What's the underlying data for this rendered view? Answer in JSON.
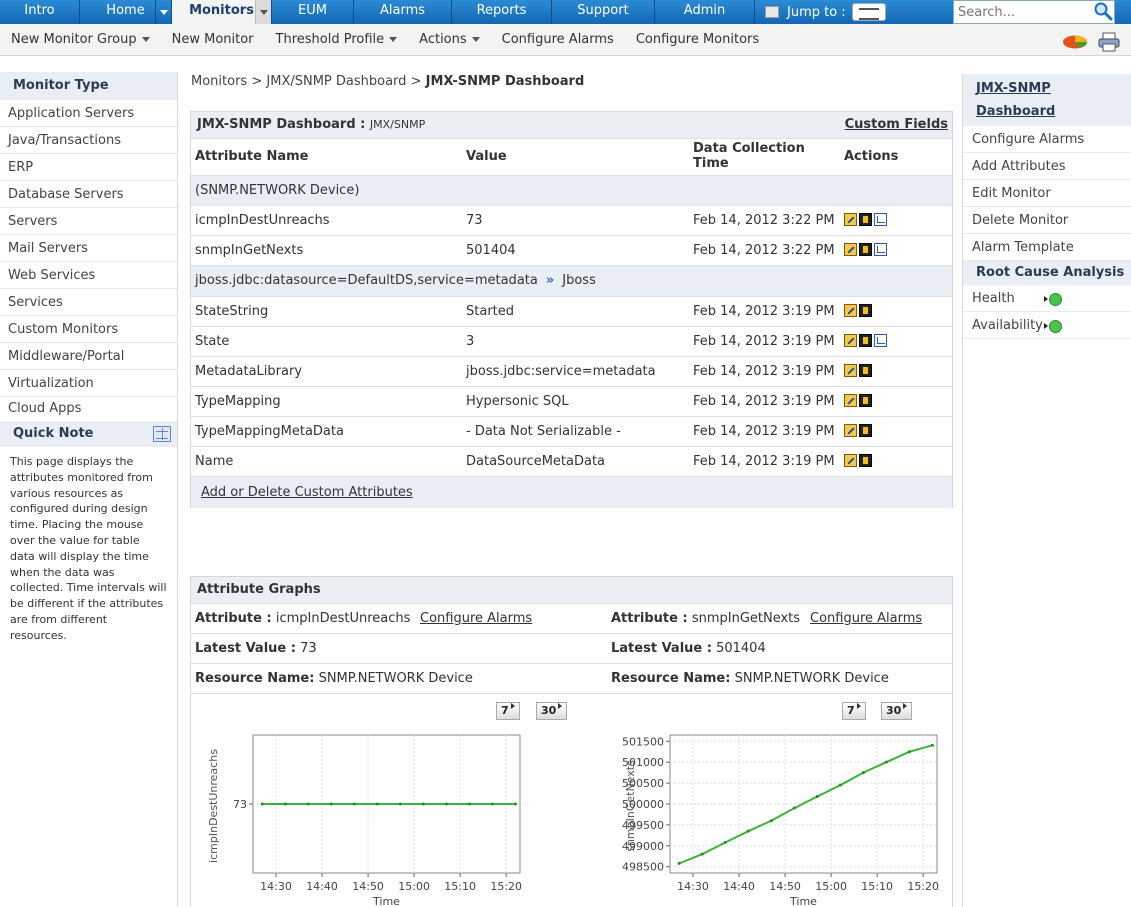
{
  "nav": {
    "tabs": [
      {
        "label": "Intro"
      },
      {
        "label": "Home"
      },
      {
        "label": "Monitors"
      },
      {
        "label": "EUM"
      },
      {
        "label": "Alarms"
      },
      {
        "label": "Reports"
      },
      {
        "label": "Support"
      },
      {
        "label": "Admin"
      }
    ],
    "jump_to": "Jump to :",
    "search_placeholder": "Search..."
  },
  "subnav": {
    "items": [
      {
        "label": "New Monitor Group"
      },
      {
        "label": "New Monitor"
      },
      {
        "label": "Threshold Profile"
      },
      {
        "label": "Actions"
      },
      {
        "label": "Configure Alarms"
      },
      {
        "label": "Configure Monitors"
      }
    ]
  },
  "left": {
    "header": "Monitor Type",
    "items": [
      "Application Servers",
      "Java/Transactions",
      "ERP",
      "Database Servers",
      "Servers",
      "Mail Servers",
      "Web Services",
      "Services",
      "Custom Monitors",
      "Middleware/Portal",
      "Virtualization",
      "Cloud Apps"
    ],
    "quick_note_title": "Quick Note",
    "quick_note_text": "This page displays the attributes monitored from various resources as configured during design time. Placing the mouse over the value for table data will display the time when the data was collected. Time intervals will be different if the attributes are from different resources."
  },
  "breadcrumb": {
    "part1": "Monitors",
    "sep": ">",
    "part2": "JMX/SNMP Dashboard",
    "current": "JMX-SNMP Dashboard"
  },
  "dashboard": {
    "title": "JMX-SNMP Dashboard :",
    "subtitle": "JMX/SNMP",
    "custom_fields": "Custom Fields",
    "headers": {
      "name": "Attribute Name",
      "value": "Value",
      "time": "Data Collection Time",
      "actions": "Actions"
    },
    "group1": "(SNMP.NETWORK Device)",
    "rows1": [
      {
        "name": "icmpInDestUnreachs",
        "value": "73",
        "time": "Feb 14, 2012 3:22 PM"
      },
      {
        "name": "snmpInGetNexts",
        "value": "501404",
        "time": "Feb 14, 2012 3:22 PM"
      }
    ],
    "group2_name": "jboss.jdbc:datasource=DefaultDS,service=metadata",
    "group2_sep": "»",
    "group2_type": "Jboss",
    "rows2": [
      {
        "name": "StateString",
        "value": "Started",
        "time": "Feb 14, 2012 3:19 PM"
      },
      {
        "name": "State",
        "value": "3",
        "time": "Feb 14, 2012 3:19 PM"
      },
      {
        "name": "MetadataLibrary",
        "value": "jboss.jdbc:service=metadata",
        "time": "Feb 14, 2012 3:19 PM"
      },
      {
        "name": "TypeMapping",
        "value": "Hypersonic SQL",
        "time": "Feb 14, 2012 3:19 PM"
      },
      {
        "name": "TypeMappingMetaData",
        "value": "- Data Not Serializable -",
        "time": "Feb 14, 2012 3:19 PM"
      },
      {
        "name": "Name",
        "value": "DataSourceMetaData",
        "time": "Feb 14, 2012 3:19 PM"
      }
    ],
    "add_custom": "Add or Delete Custom Attributes"
  },
  "graphs": {
    "title": "Attribute Graphs",
    "attr_label": "Attribute :",
    "latest_label": "Latest Value :",
    "resource_label": "Resource Name:",
    "configure_alarms": "Configure Alarms",
    "btn7": "7",
    "btn30": "30",
    "left": {
      "attribute": "icmpInDestUnreachs",
      "latest": "73",
      "resource": "SNMP.NETWORK Device"
    },
    "right": {
      "attribute": "snmpInGetNexts",
      "latest": "501404",
      "resource": "SNMP.NETWORK Device"
    }
  },
  "chart_data": [
    {
      "type": "line",
      "xlabel": "Time",
      "ylabel": "icmpInDestUnreachs",
      "x_ticks": [
        "14:30",
        "14:40",
        "14:50",
        "15:00",
        "15:10",
        "15:20"
      ],
      "y_ticks": [
        73
      ],
      "series": [
        {
          "x": [
            "14:27",
            "14:32",
            "14:37",
            "14:42",
            "14:47",
            "14:52",
            "14:57",
            "15:02",
            "15:07",
            "15:12",
            "15:17",
            "15:22"
          ],
          "values": [
            73,
            73,
            73,
            73,
            73,
            73,
            73,
            73,
            73,
            73,
            73,
            73
          ]
        }
      ],
      "color": "#3cb43c"
    },
    {
      "type": "line",
      "xlabel": "Time",
      "ylabel": "snmpInGetNexts",
      "x_ticks": [
        "14:30",
        "14:40",
        "14:50",
        "15:00",
        "15:10",
        "15:20"
      ],
      "y_ticks": [
        498500,
        499000,
        499500,
        500000,
        500500,
        501000,
        501500
      ],
      "ylim": [
        498350,
        501650
      ],
      "series": [
        {
          "x": [
            "14:27",
            "14:32",
            "14:37",
            "14:42",
            "14:47",
            "14:52",
            "14:57",
            "15:02",
            "15:07",
            "15:12",
            "15:17",
            "15:22"
          ],
          "values": [
            498580,
            498800,
            499080,
            499350,
            499600,
            499900,
            500180,
            500450,
            500750,
            501000,
            501250,
            501404
          ]
        }
      ],
      "color": "#3cb43c"
    }
  ],
  "right": {
    "title": "JMX-SNMP Dashboard",
    "items": [
      "Configure Alarms",
      "Add Attributes",
      "Edit Monitor",
      "Delete Monitor",
      "Alarm Template"
    ],
    "rca_header": "Root Cause Analysis",
    "health": "Health",
    "availability": "Availability"
  }
}
